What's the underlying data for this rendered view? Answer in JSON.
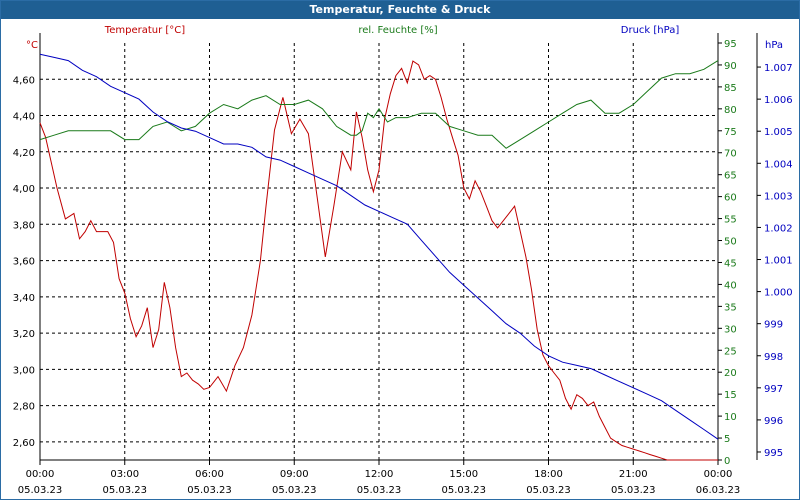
{
  "window": {
    "title": "Temperatur, Feuchte & Druck"
  },
  "colors": {
    "temp": "#c00000",
    "humidity": "#1a7a1a",
    "pressure": "#0000c0",
    "grid": "#000000",
    "titlebar": "#1f5f93"
  },
  "chart_data": {
    "type": "line",
    "title": "Temperatur, Feuchte & Druck",
    "x_unit": "hours since 05.03.23 00:00",
    "x_ticks": [
      {
        "time": "00:00",
        "date": "05.03.23"
      },
      {
        "time": "03:00",
        "date": "05.03.23"
      },
      {
        "time": "06:00",
        "date": "05.03.23"
      },
      {
        "time": "09:00",
        "date": "05.03.23"
      },
      {
        "time": "12:00",
        "date": "05.03.23"
      },
      {
        "time": "15:00",
        "date": "05.03.23"
      },
      {
        "time": "18:00",
        "date": "05.03.23"
      },
      {
        "time": "21:00",
        "date": "05.03.23"
      },
      {
        "time": "00:00",
        "date": "06.03.23"
      }
    ],
    "axes": {
      "left": {
        "label": "°C",
        "min": 2.5,
        "max": 4.8,
        "ticks": [
          "2,60",
          "2,80",
          "3,00",
          "3,20",
          "3,40",
          "3,60",
          "3,80",
          "4,00",
          "4,20",
          "4,40",
          "4,60"
        ]
      },
      "right1": {
        "label": "%",
        "min": 0,
        "max": 95,
        "ticks": [
          "0",
          "5",
          "10",
          "15",
          "20",
          "25",
          "30",
          "35",
          "40",
          "45",
          "50",
          "55",
          "60",
          "65",
          "70",
          "75",
          "80",
          "85",
          "90",
          "95"
        ]
      },
      "right2": {
        "label": "hPa",
        "min": 994.75,
        "max": 1007.75,
        "ticks": [
          "995",
          "996",
          "997",
          "998",
          "999",
          "1.000",
          "1.001",
          "1.002",
          "1.003",
          "1.004",
          "1.005",
          "1.006",
          "1.007"
        ]
      }
    },
    "series": [
      {
        "name": "Temperatur [°C]",
        "axis": "left",
        "x": [
          0,
          0.2,
          0.6,
          0.9,
          1.2,
          1.4,
          1.6,
          1.8,
          2.0,
          2.2,
          2.4,
          2.6,
          2.8,
          3.0,
          3.2,
          3.4,
          3.6,
          3.8,
          4.0,
          4.2,
          4.4,
          4.6,
          4.8,
          5.0,
          5.2,
          5.4,
          5.6,
          5.8,
          6.0,
          6.3,
          6.6,
          6.9,
          7.2,
          7.5,
          7.8,
          8.0,
          8.3,
          8.6,
          8.9,
          9.2,
          9.5,
          9.8,
          10.1,
          10.4,
          10.7,
          11.0,
          11.2,
          11.4,
          11.6,
          11.8,
          12.0,
          12.2,
          12.4,
          12.6,
          12.8,
          13.0,
          13.2,
          13.4,
          13.6,
          13.8,
          14.0,
          14.2,
          14.4,
          14.6,
          14.8,
          15.0,
          15.2,
          15.4,
          15.6,
          15.8,
          16.0,
          16.2,
          16.4,
          16.6,
          16.8,
          17.0,
          17.2,
          17.4,
          17.6,
          17.8,
          18.0,
          18.2,
          18.4,
          18.6,
          18.8,
          19.0,
          19.2,
          19.4,
          19.6,
          19.8,
          20.0,
          20.2,
          20.4,
          20.6,
          20.8,
          21.0,
          21.2,
          21.4,
          21.6,
          21.8,
          22.0,
          22.2,
          22.4,
          22.6,
          22.8,
          23.0,
          23.2,
          23.4,
          23.6,
          23.8,
          24.0
        ],
        "values": [
          4.36,
          4.28,
          4.0,
          3.83,
          3.86,
          3.72,
          3.76,
          3.82,
          3.76,
          3.76,
          3.76,
          3.7,
          3.5,
          3.42,
          3.28,
          3.18,
          3.24,
          3.34,
          3.12,
          3.22,
          3.48,
          3.34,
          3.12,
          2.96,
          2.98,
          2.94,
          2.92,
          2.89,
          2.9,
          2.96,
          2.88,
          3.02,
          3.12,
          3.3,
          3.6,
          3.9,
          4.32,
          4.5,
          4.3,
          4.38,
          4.3,
          3.96,
          3.62,
          3.9,
          4.2,
          4.1,
          4.42,
          4.28,
          4.1,
          3.98,
          4.1,
          4.38,
          4.52,
          4.62,
          4.66,
          4.58,
          4.7,
          4.68,
          4.6,
          4.62,
          4.6,
          4.5,
          4.38,
          4.28,
          4.18,
          4.0,
          3.94,
          4.04,
          3.98,
          3.9,
          3.82,
          3.78,
          3.82,
          3.86,
          3.9,
          3.76,
          3.62,
          3.44,
          3.22,
          3.08,
          3.02,
          2.98,
          2.94,
          2.84,
          2.78,
          2.86,
          2.84,
          2.8,
          2.82,
          2.74,
          2.68,
          2.62,
          2.6,
          2.58,
          2.57,
          2.56,
          2.55,
          2.54,
          2.53,
          2.52,
          2.51,
          2.5,
          2.5,
          2.5,
          2.5,
          2.5,
          2.5,
          2.5,
          2.5,
          2.5,
          2.5
        ]
      },
      {
        "name": "rel. Feuchte [%]",
        "axis": "right1",
        "x": [
          0,
          0.5,
          1.0,
          1.5,
          2.0,
          2.5,
          3.0,
          3.5,
          4.0,
          4.5,
          5.0,
          5.5,
          6.0,
          6.5,
          7.0,
          7.5,
          8.0,
          8.5,
          9.0,
          9.5,
          10.0,
          10.5,
          11.0,
          11.2,
          11.4,
          11.6,
          11.8,
          12.0,
          12.3,
          12.6,
          13.0,
          13.5,
          14.0,
          14.5,
          15.0,
          15.5,
          16.0,
          16.5,
          17.0,
          17.5,
          18.0,
          18.5,
          19.0,
          19.5,
          20.0,
          20.5,
          21.0,
          21.5,
          22.0,
          22.5,
          23.0,
          23.5,
          24.0
        ],
        "values": [
          73,
          74,
          75,
          75,
          75,
          75,
          73,
          73,
          76,
          77,
          75,
          76,
          79,
          81,
          80,
          82,
          83,
          81,
          81,
          82,
          80,
          76,
          74,
          74,
          75,
          79,
          78,
          80,
          77,
          78,
          78,
          79,
          79,
          76,
          75,
          74,
          74,
          71,
          73,
          75,
          77,
          79,
          81,
          82,
          79,
          79,
          81,
          84,
          87,
          88,
          88,
          89,
          91
        ]
      },
      {
        "name": "Druck [hPa]",
        "axis": "right2",
        "x": [
          0,
          0.5,
          1.0,
          1.5,
          2.0,
          2.5,
          3.0,
          3.5,
          4.0,
          4.5,
          5.0,
          5.5,
          6.0,
          6.5,
          7.0,
          7.5,
          8.0,
          8.5,
          9.0,
          9.5,
          10.0,
          10.5,
          11.0,
          11.5,
          12.0,
          12.5,
          13.0,
          13.5,
          14.0,
          14.5,
          15.0,
          15.5,
          16.0,
          16.5,
          17.0,
          17.5,
          18.0,
          18.5,
          19.0,
          19.5,
          20.0,
          20.5,
          21.0,
          21.5,
          22.0,
          22.5,
          23.0,
          23.5,
          24.0
        ],
        "values": [
          1007.4,
          1007.3,
          1007.2,
          1006.9,
          1006.7,
          1006.4,
          1006.2,
          1006.0,
          1005.6,
          1005.3,
          1005.1,
          1005.0,
          1004.8,
          1004.6,
          1004.6,
          1004.5,
          1004.2,
          1004.1,
          1003.9,
          1003.7,
          1003.5,
          1003.3,
          1003.0,
          1002.7,
          1002.5,
          1002.3,
          1002.1,
          1001.6,
          1001.1,
          1000.6,
          1000.2,
          999.8,
          999.4,
          999.0,
          998.7,
          998.3,
          998.0,
          997.8,
          997.7,
          997.6,
          997.4,
          997.2,
          997.0,
          996.8,
          996.6,
          996.3,
          996.0,
          995.7,
          995.4
        ]
      }
    ],
    "legend": [
      "Temperatur [°C]",
      "rel. Feuchte [%]",
      "Druck [hPa]"
    ],
    "grid": true
  }
}
